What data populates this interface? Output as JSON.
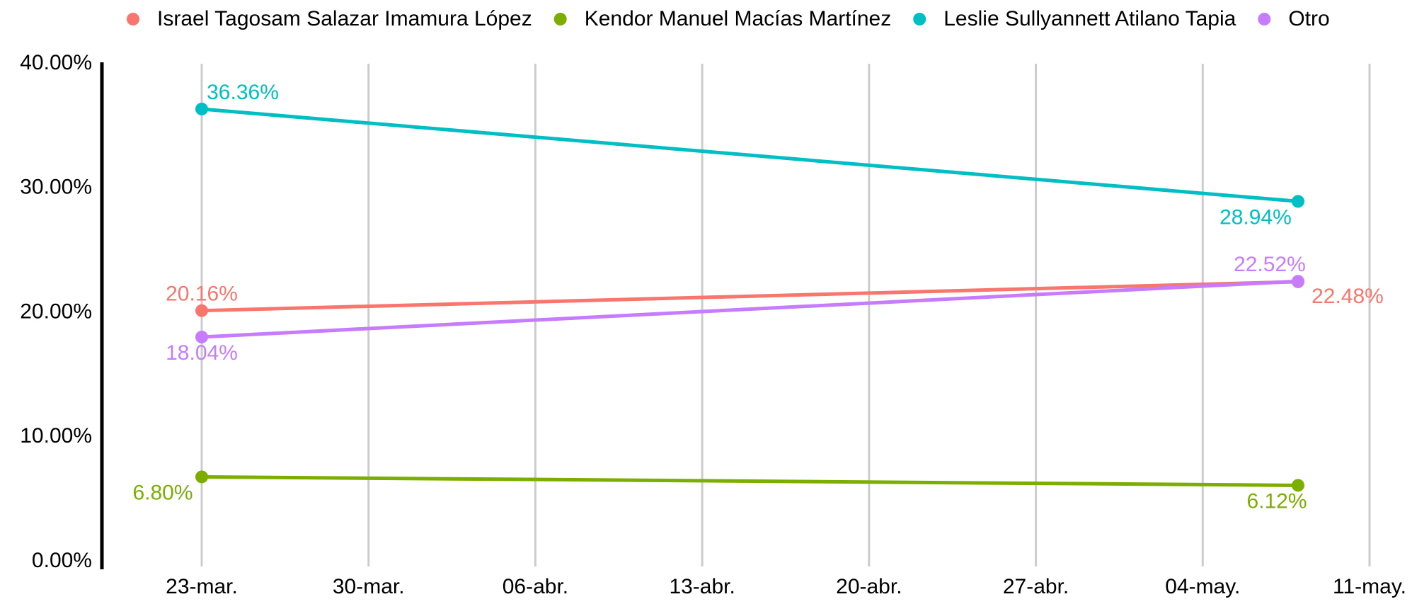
{
  "chart_data": {
    "type": "line",
    "x": [
      "03-23",
      "05-08"
    ],
    "series": [
      {
        "name": "Israel Tagosam Salazar Imamura López",
        "color": "#f8766d",
        "values": [
          20.16,
          22.48
        ],
        "value_labels": [
          "20.16%",
          "22.48%"
        ]
      },
      {
        "name": "Kendor Manuel Macías Martínez",
        "color": "#7cae00",
        "values": [
          6.8,
          6.12
        ],
        "value_labels": [
          "6.80%",
          "6.12%"
        ]
      },
      {
        "name": "Leslie Sullyannett Atilano Tapia",
        "color": "#00bfc4",
        "values": [
          36.36,
          28.94
        ],
        "value_labels": [
          "36.36%",
          "28.94%"
        ]
      },
      {
        "name": "Otro",
        "color": "#c77cff",
        "values": [
          18.04,
          22.52
        ],
        "value_labels": [
          "18.04%",
          "22.52%"
        ]
      }
    ],
    "xlim": [
      "03-16",
      "05-11"
    ],
    "xticks": [
      {
        "value": "03-23",
        "label": "23-mar."
      },
      {
        "value": "03-30",
        "label": "30-mar."
      },
      {
        "value": "04-06",
        "label": "06-abr."
      },
      {
        "value": "04-13",
        "label": "13-abr."
      },
      {
        "value": "04-20",
        "label": "20-abr."
      },
      {
        "value": "04-27",
        "label": "27-abr."
      },
      {
        "value": "05-04",
        "label": "04-may."
      },
      {
        "value": "05-11",
        "label": "11-may."
      }
    ],
    "ylim": [
      0,
      40
    ],
    "yticks": [
      {
        "value": 0,
        "label": "0.00%"
      },
      {
        "value": 10,
        "label": "10.00%"
      },
      {
        "value": 20,
        "label": "20.00%"
      },
      {
        "value": 30,
        "label": "30.00%"
      },
      {
        "value": 40,
        "label": "40.00%"
      }
    ],
    "grid": true,
    "legend": "top"
  }
}
